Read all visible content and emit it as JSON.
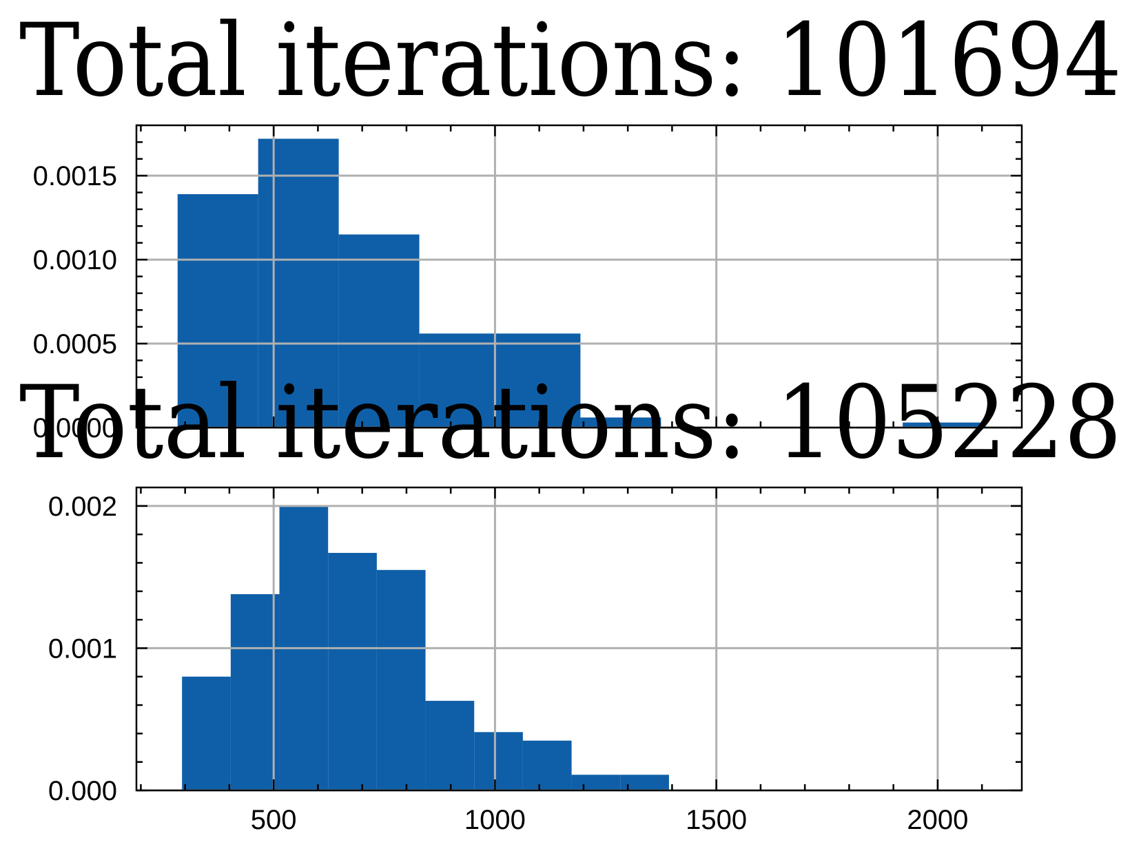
{
  "colors": {
    "bar": "#0f5fa8",
    "grid": "#b0b0b0",
    "axis": "#000000"
  },
  "chart_data": [
    {
      "type": "bar",
      "title": "Total iterations:  101694",
      "xlim": [
        190,
        2190
      ],
      "ylim": [
        0,
        0.0018
      ],
      "yticks": [
        0.0,
        0.0005,
        0.001,
        0.0015
      ],
      "ytick_labels": [
        "0.0000",
        "0.0005",
        "0.0010",
        "0.0015"
      ],
      "xticks": [
        500,
        1000,
        1500,
        2000
      ],
      "xtick_labels": [],
      "grid": true,
      "bins": [
        {
          "x0": 283,
          "x1": 465,
          "value": 0.00139
        },
        {
          "x0": 465,
          "x1": 647,
          "value": 0.00172
        },
        {
          "x0": 647,
          "x1": 829,
          "value": 0.00115
        },
        {
          "x0": 829,
          "x1": 1011,
          "value": 0.00056
        },
        {
          "x0": 1011,
          "x1": 1193,
          "value": 0.00056
        },
        {
          "x0": 1193,
          "x1": 1375,
          "value": 6e-05
        },
        {
          "x0": 1375,
          "x1": 1557,
          "value": 0.0
        },
        {
          "x0": 1557,
          "x1": 1739,
          "value": 0.0
        },
        {
          "x0": 1739,
          "x1": 1921,
          "value": 0.0
        },
        {
          "x0": 1921,
          "x1": 2103,
          "value": 3e-05
        }
      ]
    },
    {
      "type": "bar",
      "title": "Total iterations:  105228",
      "xlim": [
        190,
        2190
      ],
      "ylim": [
        0,
        0.00213
      ],
      "yticks": [
        0.0,
        0.001,
        0.002
      ],
      "ytick_labels": [
        "0.000",
        "0.001",
        "0.002"
      ],
      "xticks": [
        500,
        1000,
        1500,
        2000
      ],
      "xtick_labels": [
        "500",
        "1000",
        "1500",
        "2000"
      ],
      "grid": true,
      "bins": [
        {
          "x0": 293,
          "x1": 403,
          "value": 0.0008
        },
        {
          "x0": 403,
          "x1": 513,
          "value": 0.00138
        },
        {
          "x0": 513,
          "x1": 623,
          "value": 0.002
        },
        {
          "x0": 623,
          "x1": 733,
          "value": 0.00167
        },
        {
          "x0": 733,
          "x1": 843,
          "value": 0.00155
        },
        {
          "x0": 843,
          "x1": 953,
          "value": 0.00063
        },
        {
          "x0": 953,
          "x1": 1063,
          "value": 0.00041
        },
        {
          "x0": 1063,
          "x1": 1173,
          "value": 0.00035
        },
        {
          "x0": 1173,
          "x1": 1283,
          "value": 0.00011
        },
        {
          "x0": 1283,
          "x1": 1393,
          "value": 0.00011
        }
      ]
    }
  ]
}
